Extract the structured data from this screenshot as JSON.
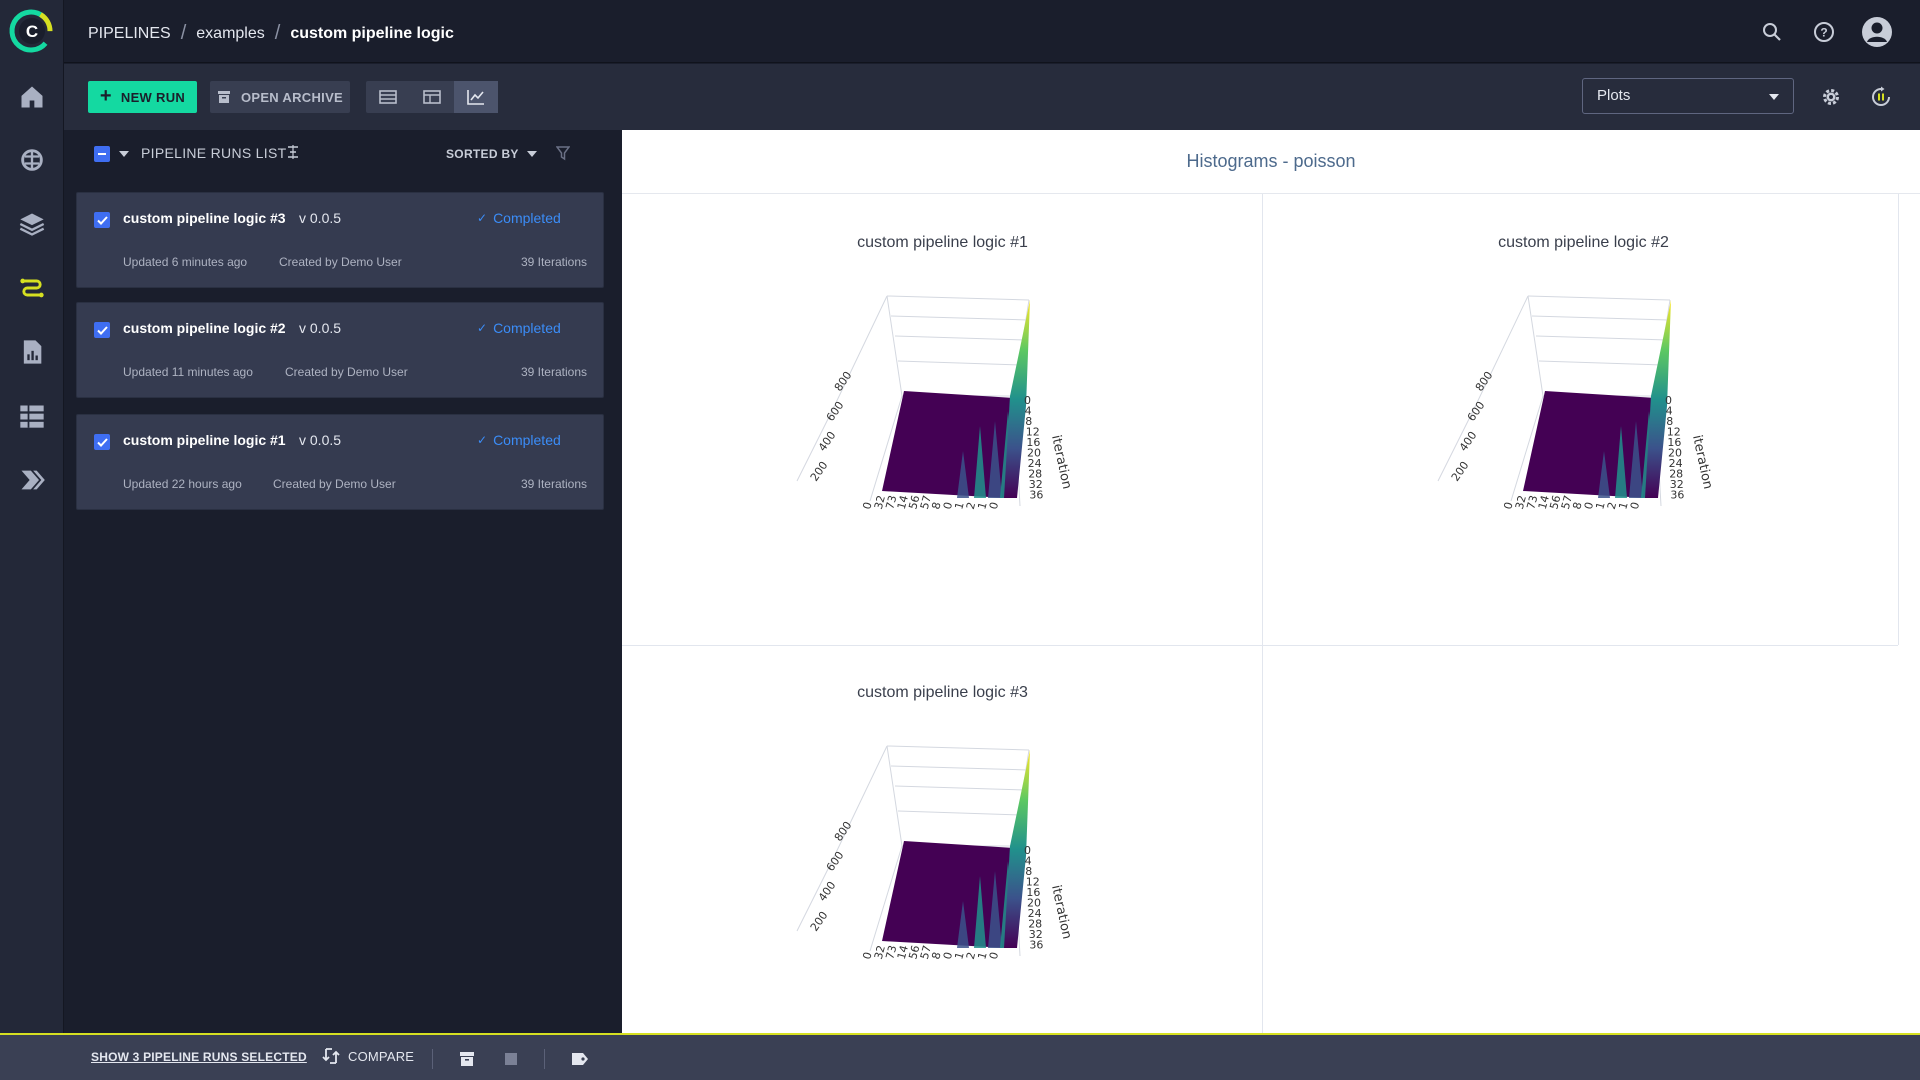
{
  "breadcrumb": {
    "root": "PIPELINES",
    "project": "examples",
    "current": "custom pipeline logic"
  },
  "toolbar": {
    "new_run_label": "NEW RUN",
    "open_archive_label": "OPEN ARCHIVE",
    "view_select_value": "Plots"
  },
  "runs_list": {
    "title": "PIPELINE RUNS LIST",
    "sorted_by_label": "SORTED BY",
    "items": [
      {
        "name": "custom pipeline logic #3",
        "version": "v 0.0.5",
        "status": "Completed",
        "updated": "Updated 6 minutes ago",
        "created_by": "Created by Demo User",
        "iterations": "39 Iterations",
        "checked": true
      },
      {
        "name": "custom pipeline logic #2",
        "version": "v 0.0.5",
        "status": "Completed",
        "updated": "Updated 11 minutes ago",
        "created_by": "Created by Demo User",
        "iterations": "39 Iterations",
        "checked": true
      },
      {
        "name": "custom pipeline logic #1",
        "version": "v 0.0.5",
        "status": "Completed",
        "updated": "Updated 22 hours ago",
        "created_by": "Created by Demo User",
        "iterations": "39 Iterations",
        "checked": true
      }
    ]
  },
  "plots": {
    "section_title": "Histograms - poisson",
    "panels": [
      {
        "title": "custom pipeline logic #1"
      },
      {
        "title": "custom pipeline logic #2"
      },
      {
        "title": "custom pipeline logic #3"
      }
    ],
    "axis": {
      "z_ticks": [
        "200",
        "400",
        "600",
        "800"
      ],
      "x_ticks": [
        "0",
        "32",
        "73",
        "14",
        "56",
        "57",
        "8",
        "0",
        "1",
        "2",
        "1",
        "0"
      ],
      "y_ticks": [
        "0",
        "4",
        "8",
        "12",
        "16",
        "20",
        "24",
        "28",
        "32",
        "36"
      ],
      "y_label": "iteration"
    },
    "colormap": [
      "#440154",
      "#3b528b",
      "#21918c",
      "#5ec962",
      "#fde725"
    ]
  },
  "bottom_bar": {
    "show_selected_label": "SHOW 3 PIPELINE RUNS SELECTED",
    "compare_label": "COMPARE"
  },
  "colors": {
    "accent_green": "#14d9a1",
    "checkbox_blue": "#3f6ef2",
    "status_blue": "#3b8df8",
    "bottom_highlight": "#d6e021"
  }
}
